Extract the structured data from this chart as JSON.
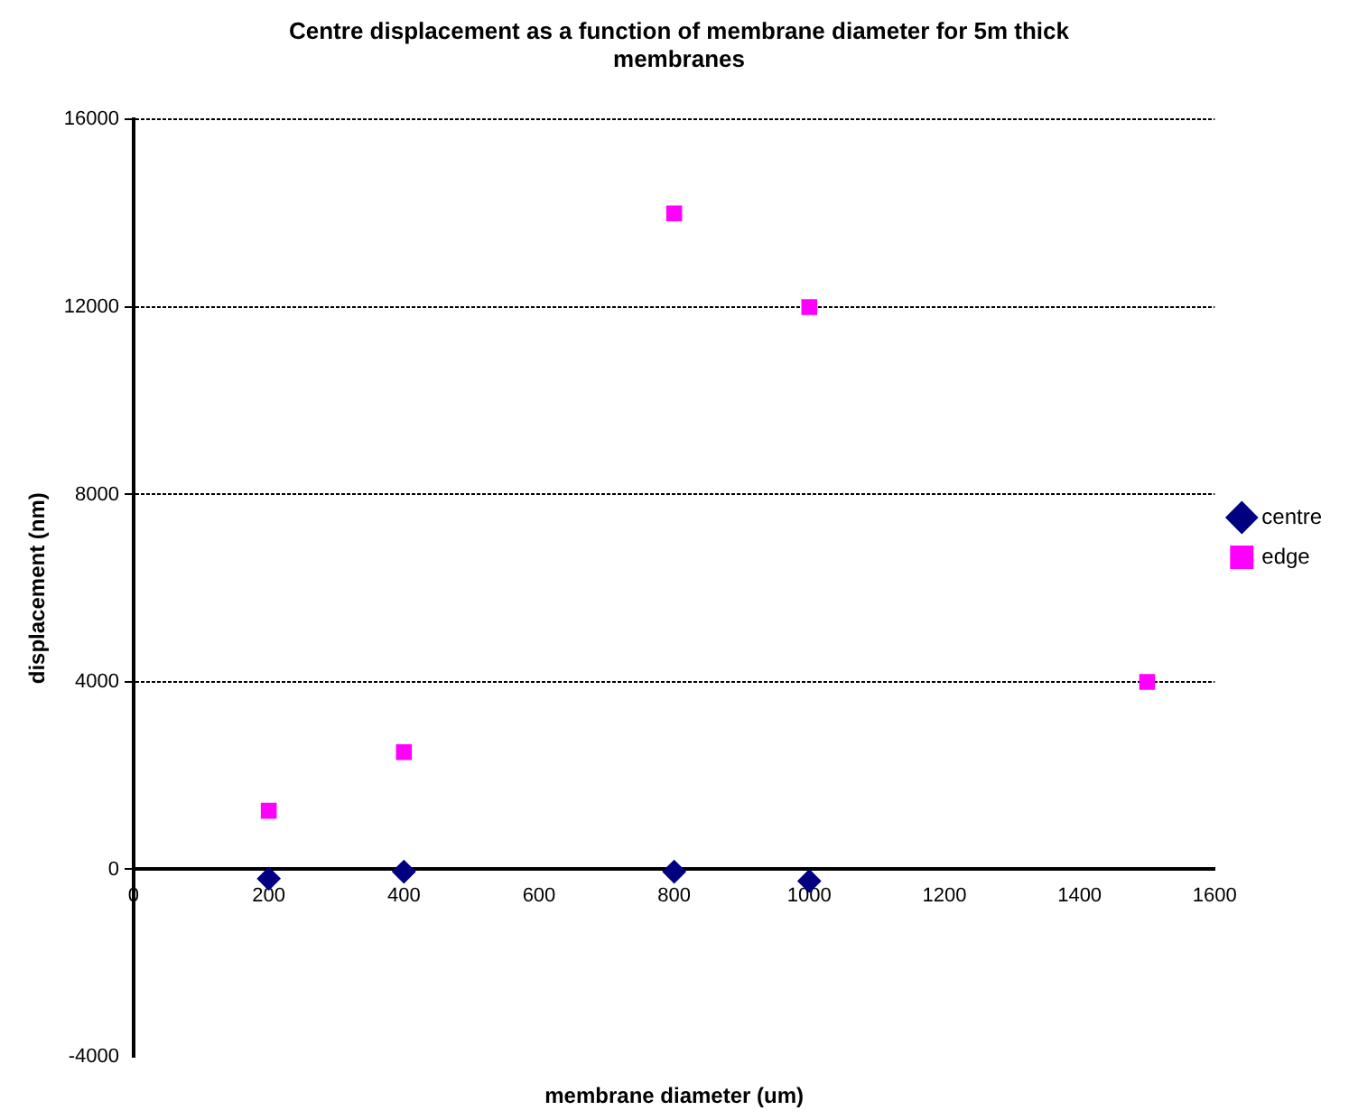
{
  "chart_data": {
    "type": "scatter",
    "title": "Centre displacement as a function of membrane diameter for 5m thick membranes",
    "xlabel": "membrane diameter (um)",
    "ylabel": "displacement (nm)",
    "xlim": [
      0,
      1600
    ],
    "xticks": [
      0,
      200,
      400,
      600,
      800,
      1000,
      1200,
      1400,
      1600
    ],
    "ylim": [
      -4000,
      16000
    ],
    "yticks": [
      -4000,
      0,
      4000,
      8000,
      12000,
      16000
    ],
    "grid": "y",
    "legend": "right",
    "series": [
      {
        "name": "centre",
        "color": "#000080",
        "marker": "diamond",
        "x": [
          200,
          400,
          800,
          1000
        ],
        "values": [
          -200,
          -50,
          -50,
          -250
        ]
      },
      {
        "name": "edge",
        "color": "#ff00ff",
        "marker": "square",
        "x": [
          200,
          400,
          800,
          1000,
          1500
        ],
        "values": [
          1250,
          2500,
          14000,
          12000,
          4000
        ]
      }
    ]
  }
}
